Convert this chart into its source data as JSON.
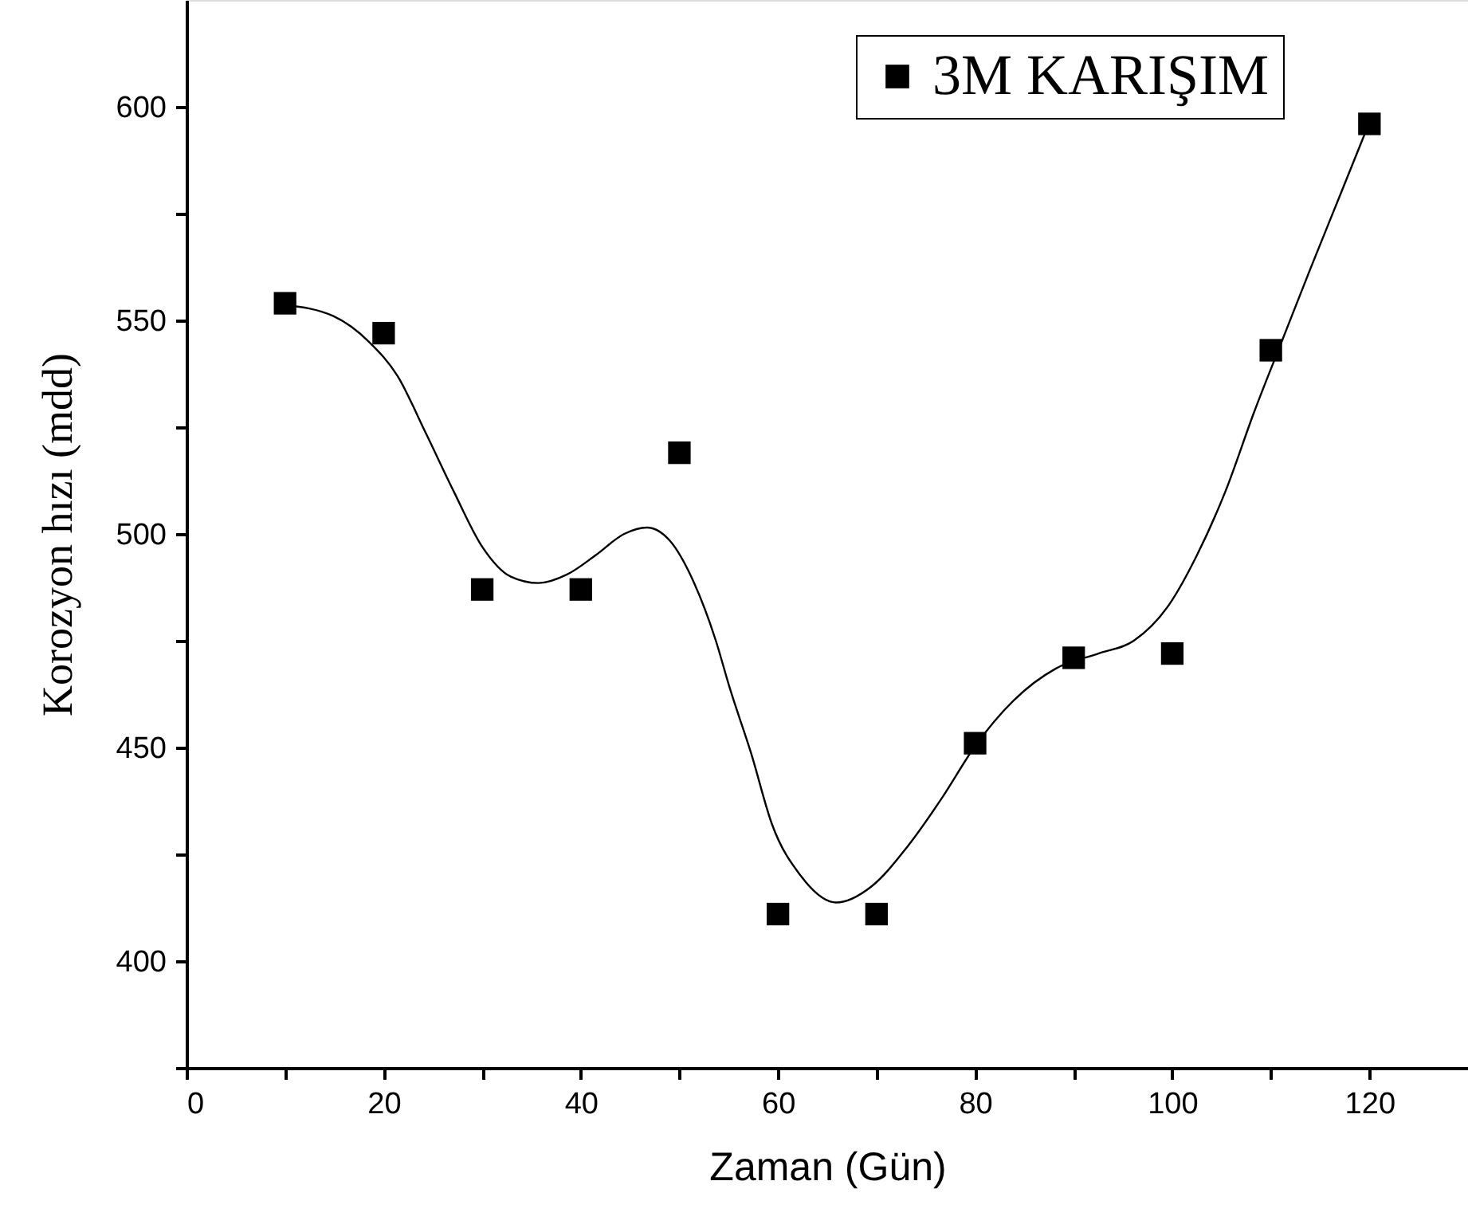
{
  "chart_data": {
    "type": "scatter",
    "xlabel": "Zaman (Gün)",
    "ylabel": "Korozyon hızı (mdd)",
    "xlim": [
      0,
      130
    ],
    "ylim": [
      375,
      625
    ],
    "xticks": [
      0,
      {
        "value": 10,
        "label": null
      },
      20,
      {
        "value": 30,
        "label": null
      },
      40,
      {
        "value": 50,
        "label": null
      },
      60,
      {
        "value": 70,
        "label": null
      },
      80,
      {
        "value": 90,
        "label": null
      },
      100,
      {
        "value": 110,
        "label": null
      },
      120
    ],
    "yticks": [
      {
        "value": 375,
        "label": null
      },
      400,
      {
        "value": 425,
        "label": null
      },
      450,
      {
        "value": 475,
        "label": null
      },
      500,
      {
        "value": 525,
        "label": null
      },
      550,
      {
        "value": 575,
        "label": null
      },
      600
    ],
    "grid": false,
    "legend": "top right",
    "marker": "square",
    "x": [
      10,
      20,
      30,
      40,
      50,
      60,
      70,
      80,
      90,
      100,
      110,
      120
    ],
    "series": [
      {
        "name": "3M KARIŞIM",
        "color": "#000000",
        "values": [
          554,
          547,
          487,
          487,
          519,
          411,
          411,
          451,
          471,
          472,
          543,
          596
        ]
      },
      {
        "type": "line",
        "color": "#000000",
        "line_style": "solid",
        "marker": "none",
        "x": [
          10,
          14.9,
          18.5,
          21.4,
          24.3,
          27.1,
          30,
          32.9,
          35.7,
          38.6,
          41.5,
          44.4,
          46.7,
          49,
          51.5,
          53.7,
          55.1,
          57.3,
          59.4,
          62.3,
          65.9,
          69.5,
          73.1,
          76.7,
          79.9,
          83.9,
          88.2,
          92.5,
          96.1,
          99.7,
          102.5,
          105.4,
          108.3,
          111.1,
          114,
          116.9,
          119.9
        ],
        "values": [
          553.6,
          551,
          545,
          537,
          523.5,
          510,
          497,
          490,
          488.5,
          490.5,
          495,
          500,
          501.5,
          498.5,
          488.5,
          475,
          464,
          448.5,
          432,
          420,
          413.7,
          417.5,
          426.7,
          438.4,
          450,
          461,
          468.5,
          472,
          475,
          483.5,
          495,
          510,
          528.5,
          545,
          562,
          578.6,
          595.8
        ]
      }
    ]
  }
}
